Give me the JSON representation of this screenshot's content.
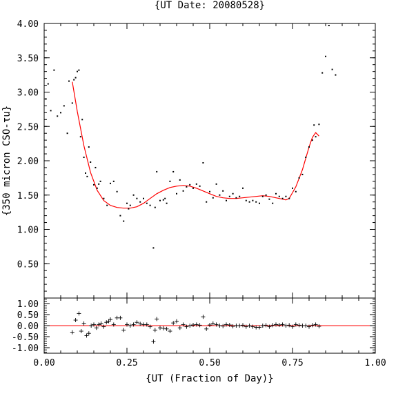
{
  "chart_data": [
    {
      "type": "scatter",
      "title": "{UT Date: 20080528}",
      "ylabel": "{350 micron CSO-τu}",
      "xlabel": "",
      "xlim": [
        0.0,
        1.0
      ],
      "ylim": [
        0.0,
        4.0
      ],
      "yticks": [
        0.5,
        1.0,
        1.5,
        2.0,
        2.5,
        3.0,
        3.5,
        4.0
      ],
      "ytick_labels": [
        "0.50",
        "1.00",
        "1.50",
        "2.00",
        "2.50",
        "3.00",
        "3.50",
        "4.00"
      ],
      "grid": false,
      "colors": {
        "points": "#000000",
        "fit": "#ff0000"
      },
      "series": [
        {
          "kind": "points",
          "x": [
            0.005,
            0.012,
            0.02,
            0.03,
            0.04,
            0.05,
            0.06,
            0.07,
            0.075,
            0.085,
            0.09,
            0.095,
            0.1,
            0.105,
            0.11,
            0.115,
            0.12,
            0.125,
            0.13,
            0.135,
            0.14,
            0.15,
            0.155,
            0.16,
            0.165,
            0.17,
            0.18,
            0.19,
            0.2,
            0.21,
            0.22,
            0.23,
            0.24,
            0.25,
            0.255,
            0.26,
            0.27,
            0.28,
            0.29,
            0.3,
            0.31,
            0.32,
            0.33,
            0.335,
            0.34,
            0.35,
            0.36,
            0.365,
            0.37,
            0.38,
            0.39,
            0.4,
            0.41,
            0.42,
            0.43,
            0.44,
            0.45,
            0.46,
            0.47,
            0.48,
            0.49,
            0.5,
            0.51,
            0.52,
            0.53,
            0.54,
            0.55,
            0.56,
            0.57,
            0.58,
            0.59,
            0.6,
            0.61,
            0.62,
            0.63,
            0.64,
            0.65,
            0.66,
            0.67,
            0.68,
            0.69,
            0.7,
            0.71,
            0.72,
            0.73,
            0.74,
            0.75,
            0.76,
            0.77,
            0.78,
            0.79,
            0.8,
            0.81,
            0.815,
            0.82,
            0.83,
            0.84,
            0.85,
            0.86,
            0.87,
            0.88
          ],
          "y": [
            2.9,
            3.12,
            2.73,
            3.32,
            2.65,
            2.7,
            2.8,
            2.4,
            3.16,
            2.84,
            3.18,
            3.21,
            3.3,
            3.32,
            2.35,
            2.6,
            2.05,
            1.82,
            1.77,
            2.2,
            1.98,
            1.65,
            1.9,
            1.6,
            1.66,
            1.7,
            1.45,
            1.35,
            1.67,
            1.7,
            1.55,
            1.2,
            1.12,
            1.38,
            1.3,
            1.35,
            1.5,
            1.45,
            1.4,
            1.45,
            1.38,
            1.35,
            0.73,
            1.32,
            1.84,
            1.42,
            1.43,
            1.45,
            1.38,
            1.7,
            1.84,
            1.52,
            1.72,
            1.56,
            1.62,
            1.65,
            1.6,
            1.66,
            1.63,
            1.97,
            1.4,
            1.55,
            1.46,
            1.66,
            1.5,
            1.56,
            1.42,
            1.48,
            1.52,
            1.46,
            1.48,
            1.6,
            1.42,
            1.4,
            1.42,
            1.4,
            1.38,
            1.48,
            1.5,
            1.44,
            1.38,
            1.52,
            1.48,
            1.45,
            1.48,
            1.45,
            1.6,
            1.55,
            1.75,
            1.8,
            2.05,
            2.2,
            2.3,
            2.52,
            2.35,
            2.53,
            3.28,
            3.52,
            3.97,
            3.33,
            3.25
          ]
        },
        {
          "kind": "fit",
          "x": [
            0.085,
            0.1,
            0.12,
            0.14,
            0.16,
            0.18,
            0.2,
            0.22,
            0.24,
            0.26,
            0.28,
            0.3,
            0.32,
            0.34,
            0.36,
            0.38,
            0.4,
            0.42,
            0.44,
            0.46,
            0.48,
            0.5,
            0.52,
            0.54,
            0.56,
            0.58,
            0.6,
            0.62,
            0.64,
            0.66,
            0.68,
            0.7,
            0.72,
            0.73,
            0.74,
            0.76,
            0.78,
            0.8,
            0.81,
            0.82,
            0.83
          ],
          "y": [
            3.15,
            2.72,
            2.22,
            1.83,
            1.57,
            1.42,
            1.35,
            1.32,
            1.31,
            1.31,
            1.33,
            1.38,
            1.45,
            1.52,
            1.57,
            1.61,
            1.63,
            1.64,
            1.63,
            1.6,
            1.56,
            1.52,
            1.48,
            1.46,
            1.45,
            1.45,
            1.46,
            1.47,
            1.48,
            1.49,
            1.48,
            1.46,
            1.44,
            1.43,
            1.45,
            1.62,
            1.87,
            2.2,
            2.34,
            2.41,
            2.36
          ]
        }
      ]
    },
    {
      "type": "scatter",
      "title": "",
      "xlabel": "{UT (Fraction of Day)}",
      "ylabel": "",
      "xlim": [
        0.0,
        1.0
      ],
      "ylim": [
        -1.25,
        1.25
      ],
      "yticks": [
        -1.0,
        -0.5,
        0.0,
        0.5,
        1.0
      ],
      "ytick_labels": [
        "-1.00",
        "-0.50",
        "0.00",
        "0.50",
        "1.00"
      ],
      "xticks": [
        0.0,
        0.25,
        0.5,
        0.75,
        1.0
      ],
      "xtick_labels": [
        "0.00",
        "0.25",
        "0.50",
        "0.75",
        "1.00"
      ],
      "grid": false,
      "colors": {
        "points": "#000000",
        "zero_line": "#ff0000"
      },
      "series": [
        {
          "kind": "residuals",
          "x": [
            0.085,
            0.095,
            0.105,
            0.112,
            0.12,
            0.128,
            0.135,
            0.142,
            0.15,
            0.158,
            0.165,
            0.172,
            0.18,
            0.188,
            0.195,
            0.2,
            0.21,
            0.22,
            0.23,
            0.24,
            0.25,
            0.26,
            0.27,
            0.28,
            0.29,
            0.3,
            0.31,
            0.32,
            0.33,
            0.335,
            0.34,
            0.35,
            0.36,
            0.37,
            0.38,
            0.39,
            0.4,
            0.41,
            0.42,
            0.43,
            0.44,
            0.45,
            0.46,
            0.47,
            0.48,
            0.49,
            0.5,
            0.51,
            0.52,
            0.53,
            0.54,
            0.55,
            0.56,
            0.57,
            0.58,
            0.59,
            0.6,
            0.61,
            0.62,
            0.63,
            0.64,
            0.65,
            0.66,
            0.67,
            0.68,
            0.69,
            0.7,
            0.71,
            0.72,
            0.73,
            0.74,
            0.75,
            0.76,
            0.77,
            0.78,
            0.79,
            0.8,
            0.81,
            0.82,
            0.83
          ],
          "y": [
            -0.3,
            0.25,
            0.55,
            -0.25,
            0.1,
            -0.45,
            -0.35,
            0.0,
            0.05,
            -0.1,
            0.05,
            0.1,
            -0.05,
            0.15,
            0.2,
            0.28,
            0.05,
            0.35,
            0.35,
            -0.2,
            0.05,
            0.0,
            0.05,
            0.15,
            0.08,
            0.05,
            0.05,
            -0.05,
            -0.72,
            -0.2,
            0.3,
            -0.1,
            -0.12,
            -0.15,
            -0.25,
            0.12,
            0.2,
            -0.1,
            0.05,
            -0.05,
            0.0,
            0.03,
            0.05,
            0.02,
            0.4,
            -0.15,
            0.03,
            0.1,
            0.05,
            0.0,
            -0.02,
            0.05,
            0.03,
            -0.03,
            0.0,
            0.0,
            0.02,
            -0.05,
            0.0,
            -0.05,
            -0.08,
            -0.08,
            0.0,
            0.02,
            -0.05,
            0.02,
            0.05,
            0.03,
            0.05,
            0.0,
            0.02,
            -0.05,
            0.05,
            0.02,
            0.0,
            0.0,
            -0.05,
            0.02,
            0.05,
            -0.03
          ]
        }
      ]
    }
  ]
}
